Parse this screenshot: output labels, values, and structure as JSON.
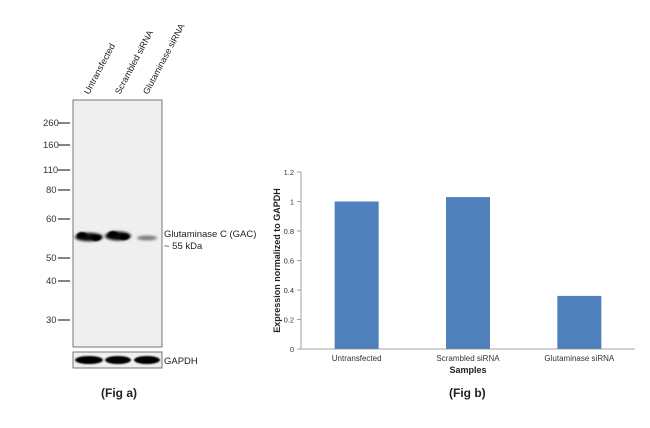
{
  "fig_a": {
    "lane_labels": [
      "Untransfected",
      "Scrambled siRNA",
      "Glutaminase siRNA"
    ],
    "markers": [
      "260",
      "160",
      "110",
      "80",
      "60",
      "50",
      "40",
      "30"
    ],
    "band_label_line1": "Glutaminase C (GAC)",
    "band_label_line2": "~ 55 kDa",
    "loading_control_label": "GAPDH",
    "caption": "(Fig a)"
  },
  "fig_b": {
    "caption": "(Fig b)"
  },
  "chart_data": {
    "type": "bar",
    "categories": [
      "Untransfected",
      "Scrambled siRNA",
      "Glutaminase siRNA"
    ],
    "values": [
      1.0,
      1.03,
      0.36
    ],
    "title": "",
    "xlabel": "Samples",
    "ylabel": "Expression  normalized to GAPDH",
    "ylim": [
      0,
      1.2
    ],
    "yticks": [
      "0",
      "0.2",
      "0.4",
      "0.6",
      "0.8",
      "1",
      "1.2"
    ],
    "bar_color": "#4f81bd",
    "grid": false,
    "legend": "none"
  }
}
